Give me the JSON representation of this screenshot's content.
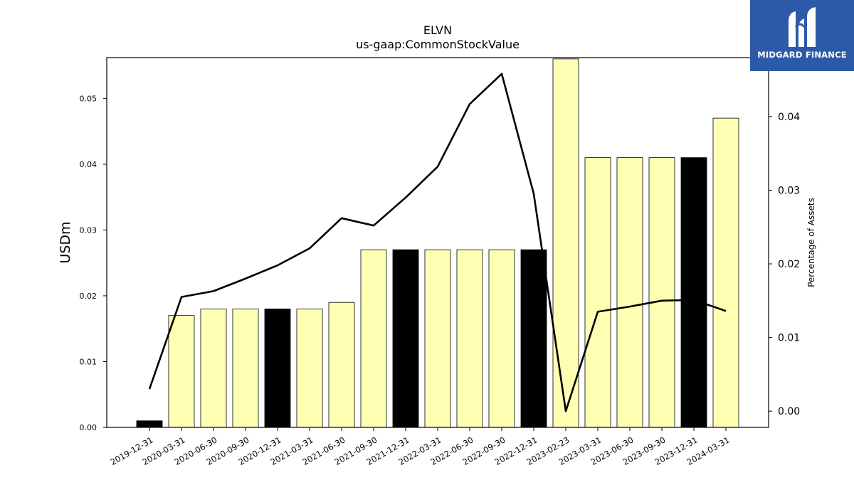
{
  "chart_data": {
    "type": "bar",
    "title": "ELVN",
    "subtitle": "us-gaap:CommonStockValue",
    "ylabel": "USDm",
    "y2label": "Percentage of Assets",
    "categories": [
      "2019-12-31",
      "2020-03-31",
      "2020-06-30",
      "2020-09-30",
      "2020-12-31",
      "2021-03-31",
      "2021-06-30",
      "2021-09-30",
      "2021-12-31",
      "2022-03-31",
      "2022-06-30",
      "2022-09-30",
      "2022-12-31",
      "2023-02-23",
      "2023-03-31",
      "2023-06-30",
      "2023-09-30",
      "2023-12-31",
      "2024-03-31"
    ],
    "series": [
      {
        "type": "bar",
        "values": [
          0.001,
          0.017,
          0.018,
          0.018,
          0.018,
          0.018,
          0.019,
          0.027,
          0.027,
          0.027,
          0.027,
          0.027,
          0.027,
          0.056,
          0.041,
          0.041,
          0.041,
          0.041,
          0.047
        ],
        "highlight": [
          true,
          false,
          false,
          false,
          true,
          false,
          false,
          false,
          true,
          false,
          false,
          false,
          true,
          false,
          false,
          false,
          false,
          true,
          false
        ]
      },
      {
        "type": "line",
        "axis": "right",
        "values": [
          0.003,
          0.0155,
          0.0163,
          0.018,
          0.0198,
          0.0221,
          0.0262,
          0.0252,
          0.029,
          0.0332,
          0.0417,
          0.0458,
          0.0295,
          0.0,
          0.0135,
          0.0142,
          0.015,
          0.0151,
          0.0136
        ]
      }
    ],
    "ylim": [
      0,
      0.0562
    ],
    "y2lim": [
      -0.0022,
      0.048
    ],
    "yticks": [
      "0.00",
      "0.01",
      "0.02",
      "0.03",
      "0.04",
      "0.05"
    ],
    "y2ticks": [
      "0.00",
      "0.01",
      "0.02",
      "0.03",
      "0.04"
    ],
    "colors": {
      "bar": "#ffffb3",
      "bar_highlight": "#000000",
      "line": "#000000"
    }
  },
  "logo": {
    "text": "MIDGARD FINANCE",
    "color": "#2d5aa8"
  }
}
